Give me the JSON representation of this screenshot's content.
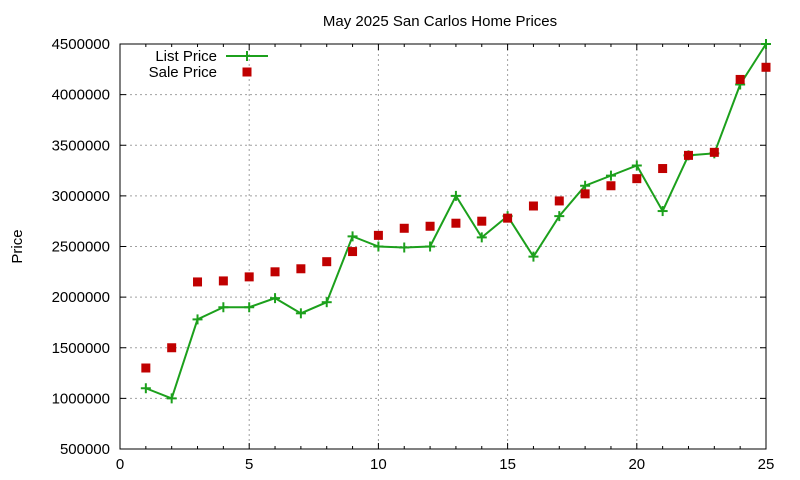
{
  "chart_data": {
    "type": "line",
    "title": "May 2025 San Carlos Home Prices",
    "xlabel": "",
    "ylabel": "Price",
    "xlim": [
      0,
      25
    ],
    "ylim": [
      500000,
      4500000
    ],
    "xticks": [
      0,
      5,
      10,
      15,
      20,
      25
    ],
    "yticks": [
      500000,
      1000000,
      1500000,
      2000000,
      2500000,
      3000000,
      3500000,
      4000000,
      4500000
    ],
    "grid": true,
    "legend_position": "top-left",
    "series": [
      {
        "name": "List Price",
        "style": "line-plus",
        "color": "#1ca01c",
        "x": [
          1,
          2,
          3,
          4,
          5,
          6,
          7,
          8,
          9,
          10,
          11,
          12,
          13,
          14,
          15,
          16,
          17,
          18,
          19,
          20,
          21,
          22,
          23,
          24,
          25
        ],
        "values": [
          1100000,
          1000000,
          1780000,
          1900000,
          1900000,
          1990000,
          1840000,
          1950000,
          2600000,
          2500000,
          2490000,
          2500000,
          3000000,
          2590000,
          2800000,
          2400000,
          2800000,
          3100000,
          3200000,
          3300000,
          2850000,
          3400000,
          3420000,
          4100000,
          4500000
        ]
      },
      {
        "name": "Sale Price",
        "style": "square",
        "color": "#c00000",
        "x": [
          1,
          2,
          3,
          4,
          5,
          6,
          7,
          8,
          9,
          10,
          11,
          12,
          13,
          14,
          15,
          16,
          17,
          18,
          19,
          20,
          21,
          22,
          23,
          24,
          25
        ],
        "values": [
          1300000,
          1500000,
          2150000,
          2160000,
          2200000,
          2250000,
          2280000,
          2350000,
          2450000,
          2610000,
          2680000,
          2700000,
          2730000,
          2750000,
          2780000,
          2900000,
          2950000,
          3020000,
          3100000,
          3170000,
          3270000,
          3400000,
          3430000,
          4150000,
          4270000
        ]
      }
    ]
  }
}
